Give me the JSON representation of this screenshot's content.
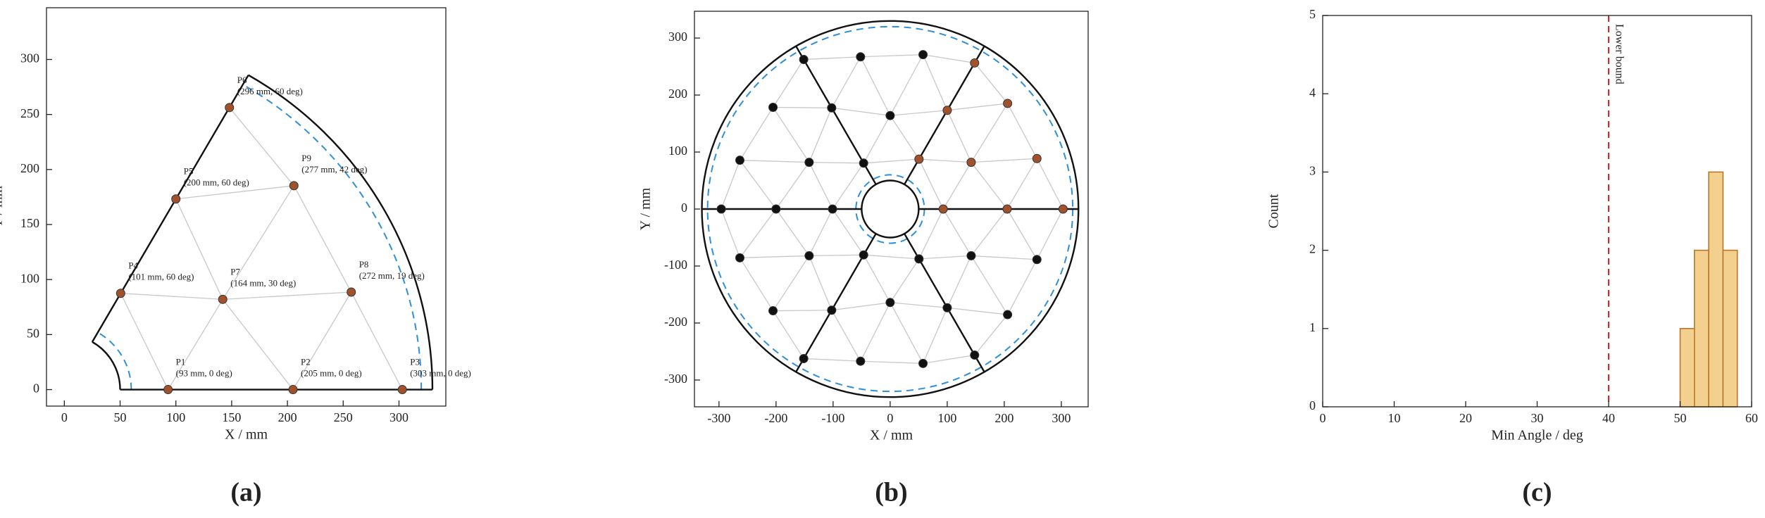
{
  "chart_data": [
    {
      "type": "scatter",
      "label": "(a)",
      "xlabel": "X / mm",
      "ylabel": "Y / mm",
      "xlim": [
        -16,
        342
      ],
      "ylim": [
        -15,
        347
      ],
      "xticks": [
        0,
        50,
        100,
        150,
        200,
        250,
        300
      ],
      "yticks": [
        0,
        50,
        100,
        150,
        200,
        250,
        300
      ],
      "x": [
        93,
        205,
        303,
        50.5,
        100,
        148,
        142,
        257.2,
        205.8
      ],
      "y": [
        0,
        0,
        0,
        87.5,
        173.2,
        256.3,
        82,
        88.6,
        185.3
      ],
      "point_names": [
        "P1",
        "P2",
        "P3",
        "P4",
        "P5",
        "P6",
        "P7",
        "P8",
        "P9"
      ],
      "point_coords": [
        "(93 mm, 0 deg)",
        "(205 mm, 0 deg)",
        "(303 mm, 0 deg)",
        "(101 mm, 60 deg)",
        "(200 mm, 60 deg)",
        "(296 mm, 60 deg)",
        "(164 mm, 30 deg)",
        "(272 mm, 19 deg)",
        "(277 mm, 42 deg)"
      ],
      "color": "#a0522d",
      "label_color": "#e0201c",
      "edge_color": "#c8c8c8",
      "edges": [
        [
          0,
          3
        ],
        [
          0,
          6
        ],
        [
          6,
          1
        ],
        [
          1,
          7
        ],
        [
          7,
          2
        ],
        [
          3,
          6
        ],
        [
          6,
          7
        ],
        [
          4,
          6
        ],
        [
          4,
          8
        ],
        [
          8,
          6
        ],
        [
          8,
          7
        ],
        [
          5,
          8
        ]
      ],
      "outer_radius": 330,
      "inner_radius": 50,
      "dashed_radii": [
        320,
        60
      ],
      "dashed_color": "#2f8fd8",
      "sector": [
        0,
        60
      ],
      "spokes": [
        0,
        60
      ]
    },
    {
      "type": "scatter",
      "label": "(b)",
      "xlabel": "X / mm",
      "ylabel": "Y / mm",
      "xlim": [
        -343,
        347
      ],
      "ylim": [
        -347,
        347
      ],
      "xticks": [
        -300,
        -200,
        -100,
        0,
        100,
        200,
        300
      ],
      "yticks": [
        -300,
        -200,
        -100,
        0,
        100,
        200,
        300
      ],
      "x": [
        93,
        205,
        303,
        50.5,
        100,
        148,
        -46.5,
        -102.5,
        -151.5,
        -101,
        -200,
        -296,
        -46.5,
        -102.5,
        -151.5,
        50.5,
        100,
        148,
        142,
        257.2,
        205.8,
        0,
        -51.9,
        57.6,
        -142,
        -205.3,
        -263.4,
        -142,
        -205.3,
        -263.4,
        0,
        -51.9,
        57.6,
        142,
        257.2,
        205.8
      ],
      "y": [
        0,
        0,
        0,
        87.5,
        173.2,
        256.3,
        80.5,
        177.5,
        262.4,
        0,
        0,
        0,
        -80.5,
        -177.5,
        -262.4,
        -87.5,
        -173.2,
        -256.3,
        82,
        88.6,
        185.3,
        164,
        267,
        270.9,
        82,
        178.4,
        85.6,
        -82,
        -178.5,
        -85.6,
        -164,
        -267,
        -270.9,
        -82,
        -88.6,
        -185.3
      ],
      "colors": [
        "#a0522d",
        "#a0522d",
        "#a0522d",
        "#a0522d",
        "#a0522d",
        "#a0522d",
        "#111111",
        "#111111",
        "#111111",
        "#111111",
        "#111111",
        "#111111",
        "#111111",
        "#111111",
        "#111111",
        "#111111",
        "#111111",
        "#111111",
        "#a0522d",
        "#a0522d",
        "#a0522d",
        "#111111",
        "#111111",
        "#111111",
        "#111111",
        "#111111",
        "#111111",
        "#111111",
        "#111111",
        "#111111",
        "#111111",
        "#111111",
        "#111111",
        "#111111",
        "#111111",
        "#111111"
      ],
      "edge_color": "#c8c8c8",
      "edges": [
        [
          0,
          3
        ],
        [
          0,
          18
        ],
        [
          18,
          1
        ],
        [
          1,
          19
        ],
        [
          19,
          2
        ],
        [
          3,
          18
        ],
        [
          18,
          19
        ],
        [
          4,
          18
        ],
        [
          4,
          20
        ],
        [
          20,
          18
        ],
        [
          20,
          19
        ],
        [
          5,
          20
        ],
        [
          6,
          3
        ],
        [
          6,
          21
        ],
        [
          21,
          7
        ],
        [
          7,
          22
        ],
        [
          22,
          8
        ],
        [
          3,
          21
        ],
        [
          21,
          22
        ],
        [
          4,
          21
        ],
        [
          4,
          23
        ],
        [
          23,
          21
        ],
        [
          23,
          22
        ],
        [
          5,
          23
        ],
        [
          6,
          9
        ],
        [
          6,
          24
        ],
        [
          24,
          7
        ],
        [
          7,
          25
        ],
        [
          25,
          8
        ],
        [
          9,
          24
        ],
        [
          24,
          25
        ],
        [
          10,
          24
        ],
        [
          10,
          26
        ],
        [
          26,
          24
        ],
        [
          26,
          25
        ],
        [
          11,
          26
        ],
        [
          12,
          9
        ],
        [
          12,
          27
        ],
        [
          27,
          13
        ],
        [
          13,
          28
        ],
        [
          28,
          14
        ],
        [
          9,
          27
        ],
        [
          27,
          28
        ],
        [
          10,
          27
        ],
        [
          10,
          29
        ],
        [
          29,
          27
        ],
        [
          29,
          28
        ],
        [
          11,
          29
        ],
        [
          12,
          15
        ],
        [
          12,
          30
        ],
        [
          30,
          13
        ],
        [
          13,
          31
        ],
        [
          31,
          14
        ],
        [
          15,
          30
        ],
        [
          30,
          31
        ],
        [
          16,
          30
        ],
        [
          16,
          32
        ],
        [
          32,
          30
        ],
        [
          32,
          31
        ],
        [
          17,
          32
        ],
        [
          0,
          15
        ],
        [
          0,
          33
        ],
        [
          33,
          1
        ],
        [
          1,
          34
        ],
        [
          34,
          2
        ],
        [
          15,
          33
        ],
        [
          33,
          34
        ],
        [
          16,
          33
        ],
        [
          16,
          35
        ],
        [
          35,
          33
        ],
        [
          35,
          34
        ],
        [
          17,
          35
        ]
      ],
      "outer_radius": 330,
      "inner_radius": 50,
      "dashed_radii": [
        320,
        60
      ],
      "dashed_color": "#2f8fd8",
      "sector": [
        0,
        360
      ],
      "spokes": [
        0,
        60,
        120,
        180,
        240,
        300
      ]
    },
    {
      "type": "histogram",
      "label": "(c)",
      "xlabel": "Min Angle / deg",
      "ylabel": "Count",
      "xlim": [
        0,
        60
      ],
      "ylim": [
        0,
        5
      ],
      "xticks": [
        0,
        10,
        20,
        30,
        40,
        50,
        60
      ],
      "yticks": [
        0,
        1,
        2,
        3,
        4,
        5
      ],
      "bins": [
        0,
        2,
        4,
        6,
        8,
        10,
        12,
        14,
        16,
        18,
        20,
        22,
        24,
        26,
        28,
        30,
        32,
        34,
        36,
        38,
        40,
        42,
        44,
        46,
        48,
        50,
        52,
        54,
        56,
        58
      ],
      "counts": [
        0,
        0,
        0,
        0,
        0,
        0,
        0,
        0,
        0,
        0,
        0,
        0,
        0,
        0,
        0,
        0,
        0,
        0,
        0,
        0,
        0,
        0,
        0,
        0,
        0,
        1,
        2,
        3,
        2
      ],
      "color": "#f3d08e",
      "edge_color": "#b9762c",
      "threshold": 40,
      "threshold_label": "Lower bound",
      "threshold_color": "#e0201c"
    }
  ]
}
